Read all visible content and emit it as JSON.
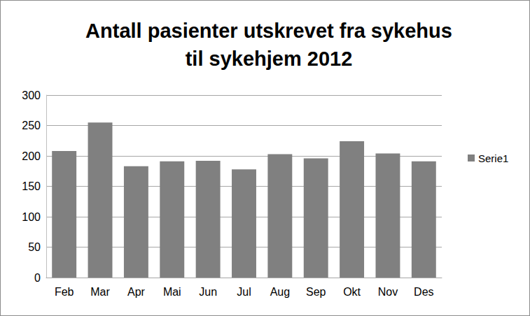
{
  "chart_data": {
    "type": "bar",
    "title": "Antall pasienter utskrevet fra sykehus\ntil sykehjem 2012",
    "categories": [
      "Feb",
      "Mar",
      "Apr",
      "Mai",
      "Jun",
      "Jul",
      "Aug",
      "Sep",
      "Okt",
      "Nov",
      "Des"
    ],
    "series": [
      {
        "name": "Serie1",
        "color": "#808080",
        "values": [
          208,
          255,
          183,
          191,
          192,
          178,
          203,
          196,
          224,
          204,
          191
        ]
      }
    ],
    "ylim": [
      0,
      300
    ],
    "yticks": [
      0,
      50,
      100,
      150,
      200,
      250,
      300
    ],
    "grid": true,
    "legend": "right"
  }
}
